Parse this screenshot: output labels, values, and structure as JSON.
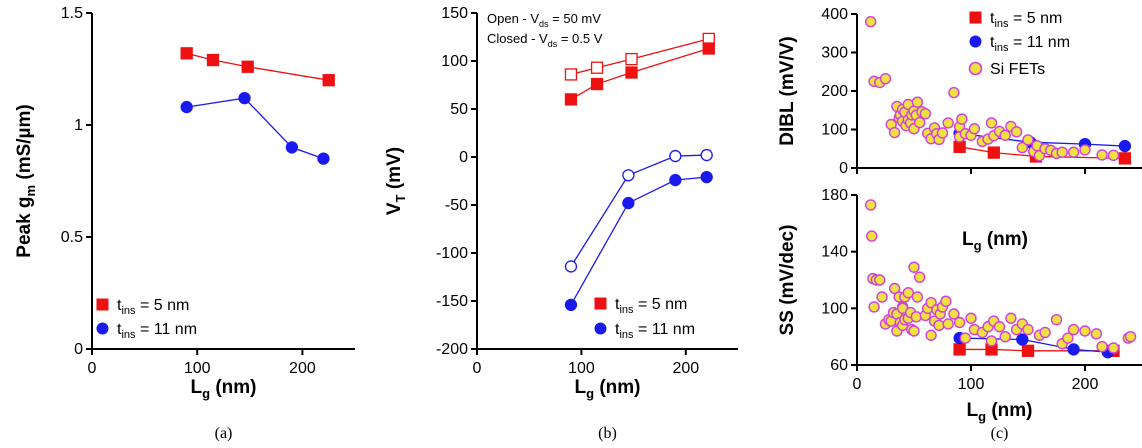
{
  "colors": {
    "red": "#ee1111",
    "blue": "#1a1aee",
    "si_fill": "#f0e040",
    "si_stroke": "#d040e0"
  },
  "legend": {
    "t5": {
      "t": "t",
      "sub": "ins",
      "rest": " = 5 nm"
    },
    "t11": {
      "t": "t",
      "sub": "ins",
      "rest": " = 11 nm"
    },
    "si": "Si FETs"
  },
  "chart_data": [
    {
      "panel": "a",
      "type": "line",
      "caption": "(a)",
      "xlabel": {
        "main": "L",
        "sub": "g",
        "rest": " (nm)"
      },
      "ylabel": {
        "main": "Peak g",
        "sub": "m",
        "rest": " (mS/µm)"
      },
      "xlim": [
        0,
        250
      ],
      "ylim": [
        0,
        1.5
      ],
      "xticks": [
        0,
        100,
        200
      ],
      "xtick_labels": [
        "0",
        "100",
        "200"
      ],
      "yticks": [
        0,
        0.5,
        1,
        1.5
      ],
      "ytick_labels": [
        "0",
        "0.5",
        "1",
        "1.5"
      ],
      "legend_position": "bottom-left",
      "series": [
        {
          "name": "t_ins = 5 nm",
          "color": "red",
          "marker": "square",
          "filled": true,
          "x": [
            90,
            115,
            148,
            225
          ],
          "y": [
            1.32,
            1.29,
            1.26,
            1.2
          ]
        },
        {
          "name": "t_ins = 11 nm",
          "color": "blue",
          "marker": "circle",
          "filled": true,
          "x": [
            90,
            145,
            190,
            220
          ],
          "y": [
            1.08,
            1.12,
            0.9,
            0.85
          ]
        }
      ]
    },
    {
      "panel": "b",
      "type": "line",
      "caption": "(b)",
      "xlabel": {
        "main": "L",
        "sub": "g",
        "rest": " (nm)"
      },
      "ylabel": {
        "main": "V",
        "sub": "T",
        "rest": " (mV)"
      },
      "xlim": [
        0,
        250
      ],
      "ylim": [
        -200,
        150
      ],
      "xticks": [
        0,
        100,
        200
      ],
      "xtick_labels": [
        "0",
        "100",
        "200"
      ],
      "yticks": [
        -200,
        -150,
        -100,
        -50,
        0,
        50,
        100,
        150
      ],
      "ytick_labels": [
        "-200",
        "-150",
        "-100",
        "-50",
        "0",
        "50",
        "100",
        "150"
      ],
      "annotations": [
        {
          "pre": "Open - V",
          "sub": "ds",
          "post": " = 50 mV"
        },
        {
          "pre": "Closed - V",
          "sub": "ds",
          "post": " = 0.5 V"
        }
      ],
      "legend_position": "bottom-right",
      "series": [
        {
          "color": "red",
          "marker": "square",
          "filled": false,
          "x": [
            90,
            115,
            148,
            222
          ],
          "y": [
            86,
            93,
            102,
            123
          ]
        },
        {
          "color": "red",
          "marker": "square",
          "filled": true,
          "x": [
            90,
            115,
            148,
            222
          ],
          "y": [
            60,
            76,
            88,
            113
          ]
        },
        {
          "color": "blue",
          "marker": "circle",
          "filled": false,
          "x": [
            90,
            145,
            190,
            220
          ],
          "y": [
            -114,
            -19,
            1,
            2
          ]
        },
        {
          "color": "blue",
          "marker": "circle",
          "filled": true,
          "x": [
            90,
            145,
            190,
            220
          ],
          "y": [
            -154,
            -48,
            -24,
            -21
          ]
        }
      ]
    },
    {
      "panel": "c-top",
      "type": "scatter",
      "ylabel": {
        "main": "DIBL",
        "sub": "",
        "rest": " (mV/V)"
      },
      "xlim": [
        0,
        250
      ],
      "ylim": [
        0,
        400
      ],
      "xticks": [
        0,
        100,
        200
      ],
      "yticks": [
        0,
        100,
        200,
        300,
        400
      ],
      "ytick_labels": [
        "0",
        "100",
        "200",
        "300",
        "400"
      ],
      "legend_position": "top-right",
      "series": [
        {
          "name": "t_ins = 5 nm",
          "color": "red",
          "marker": "square",
          "filled": true,
          "line": true,
          "x": [
            90,
            120,
            157,
            235
          ],
          "y": [
            55,
            40,
            30,
            25
          ]
        },
        {
          "name": "t_ins = 11 nm",
          "color": "blue",
          "marker": "circle",
          "filled": true,
          "line": true,
          "x": [
            90,
            152,
            200,
            235
          ],
          "y": [
            90,
            67,
            62,
            57
          ]
        },
        {
          "name": "Si FETs",
          "color": "si",
          "marker": "circle",
          "filled": true,
          "line": false,
          "x": [
            12,
            15,
            20,
            25,
            30,
            33,
            35,
            37,
            38,
            40,
            40,
            42,
            43,
            45,
            45,
            47,
            48,
            50,
            50,
            52,
            53,
            55,
            57,
            60,
            62,
            65,
            68,
            70,
            72,
            75,
            80,
            85,
            90,
            90,
            92,
            95,
            100,
            103,
            110,
            115,
            118,
            120,
            125,
            130,
            135,
            140,
            145,
            150,
            155,
            158,
            160,
            165,
            170,
            175,
            180,
            190,
            200,
            215,
            225,
            258
          ],
          "y": [
            380,
            225,
            222,
            232,
            113,
            92,
            160,
            130,
            138,
            121,
            152,
            145,
            110,
            125,
            165,
            117,
            138,
            102,
            148,
            137,
            171,
            118,
            146,
            141,
            90,
            76,
            104,
            89,
            74,
            91,
            117,
            196,
            107,
            81,
            127,
            89,
            85,
            102,
            69,
            75,
            117,
            84,
            95,
            85,
            108,
            94,
            53,
            73,
            43,
            58,
            32,
            50,
            46,
            38,
            41,
            41,
            47,
            34,
            33,
            32
          ]
        }
      ]
    },
    {
      "panel": "c-bottom",
      "type": "scatter",
      "caption": "(c)",
      "xlabel": {
        "main": "L",
        "sub": "g",
        "rest": " (nm)"
      },
      "ylabel": {
        "main": "SS",
        "sub": "",
        "rest": " (mV/dec)"
      },
      "inner_label": {
        "main": "L",
        "sub": "g",
        "rest": " (nm)"
      },
      "xlim": [
        0,
        250
      ],
      "ylim": [
        60,
        180
      ],
      "xticks": [
        0,
        100,
        200
      ],
      "xtick_labels": [
        "0",
        "100",
        "200"
      ],
      "yticks": [
        60,
        100,
        140,
        180
      ],
      "ytick_labels": [
        "60",
        "100",
        "140",
        "180"
      ],
      "series": [
        {
          "color": "red",
          "marker": "square",
          "filled": true,
          "line": true,
          "x": [
            90,
            118,
            150,
            225
          ],
          "y": [
            71,
            71,
            70,
            70
          ]
        },
        {
          "color": "blue",
          "marker": "circle",
          "filled": true,
          "line": true,
          "x": [
            90,
            145,
            190,
            220
          ],
          "y": [
            79,
            78,
            71,
            69
          ]
        },
        {
          "color": "si",
          "marker": "circle",
          "filled": true,
          "line": false,
          "x": [
            12,
            13,
            14,
            15,
            17,
            20,
            22,
            25,
            28,
            30,
            32,
            33,
            35,
            35,
            37,
            38,
            40,
            40,
            40,
            42,
            42,
            45,
            45,
            47,
            48,
            50,
            50,
            52,
            53,
            55,
            60,
            62,
            65,
            65,
            68,
            70,
            72,
            73,
            75,
            78,
            80,
            85,
            90,
            95,
            100,
            103,
            110,
            115,
            118,
            120,
            125,
            130,
            135,
            140,
            145,
            150,
            160,
            165,
            175,
            180,
            185,
            190,
            200,
            210,
            215,
            225,
            238,
            240
          ],
          "y": [
            173,
            151,
            121,
            101,
            120,
            120,
            108,
            89,
            92,
            91,
            97,
            114,
            96,
            84,
            108,
            90,
            101,
            88,
            100,
            92,
            108,
            93,
            111,
            97,
            85,
            129,
            84,
            94,
            108,
            122,
            95,
            100,
            81,
            104,
            91,
            99,
            88,
            96,
            101,
            105,
            89,
            96,
            90,
            79,
            93,
            85,
            83,
            87,
            77,
            91,
            87,
            80,
            93,
            85,
            89,
            85,
            81,
            83,
            92,
            75,
            79,
            85,
            84,
            82,
            73,
            72,
            79,
            80
          ]
        }
      ]
    }
  ]
}
